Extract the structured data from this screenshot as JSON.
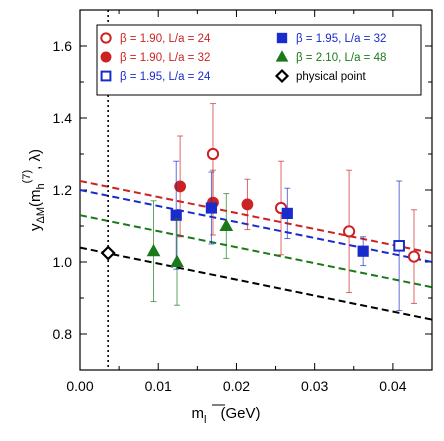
{
  "chart_data": {
    "type": "scatter",
    "title": "",
    "xlabel": "m_l (GeV)",
    "ylabel": "y_ΔM(m_h^(7), λ)",
    "xlim": [
      0.0,
      0.045
    ],
    "ylim": [
      0.7,
      1.7
    ],
    "xticks": [
      "0.00",
      "0.01",
      "0.02",
      "0.03",
      "0.04"
    ],
    "yticks": [
      "0.8",
      "1.0",
      "1.2",
      "1.4",
      "1.6"
    ],
    "x_tick_values": [
      0.0,
      0.01,
      0.02,
      0.03,
      0.04
    ],
    "y_tick_values": [
      0.8,
      1.0,
      1.2,
      1.4,
      1.6
    ],
    "physical_point_x": 0.0036,
    "legend_position": "top",
    "series": [
      {
        "name": "β = 1.90, L/a = 24",
        "color": "#cc2222",
        "marker": "circle-open",
        "points": [
          {
            "x": 0.017,
            "y": 1.3,
            "err": 0.14
          },
          {
            "x": 0.0257,
            "y": 1.15,
            "err": 0.13
          },
          {
            "x": 0.0344,
            "y": 1.085,
            "err": 0.17
          },
          {
            "x": 0.0427,
            "y": 1.015,
            "err": 0.13
          }
        ]
      },
      {
        "name": "β = 1.90, L/a = 32",
        "color": "#cc2222",
        "marker": "circle-filled",
        "points": [
          {
            "x": 0.0128,
            "y": 1.21,
            "err": 0.14
          },
          {
            "x": 0.017,
            "y": 1.165,
            "err": 0.09
          },
          {
            "x": 0.0214,
            "y": 1.16,
            "err": 0.07
          }
        ]
      },
      {
        "name": "β = 1.95, L/a = 24",
        "color": "#1a2bcc",
        "marker": "square-open",
        "points": [
          {
            "x": 0.0408,
            "y": 1.045,
            "err": 0.18
          }
        ]
      },
      {
        "name": "β = 1.95, L/a = 32",
        "color": "#1a2bcc",
        "marker": "square-filled",
        "points": [
          {
            "x": 0.0123,
            "y": 1.13,
            "err": 0.15
          },
          {
            "x": 0.0168,
            "y": 1.15,
            "err": 0.1
          },
          {
            "x": 0.0265,
            "y": 1.135,
            "err": 0.07
          },
          {
            "x": 0.0362,
            "y": 1.03,
            "err": 0.04
          }
        ]
      },
      {
        "name": "β = 2.10, L/a = 48",
        "color": "#1a7a1a",
        "marker": "triangle-filled",
        "points": [
          {
            "x": 0.0094,
            "y": 1.03,
            "err": 0.14
          },
          {
            "x": 0.0124,
            "y": 1.0,
            "err": 0.12
          },
          {
            "x": 0.0187,
            "y": 1.1,
            "err": 0.09
          }
        ]
      },
      {
        "name": "physical point",
        "color": "#000000",
        "marker": "diamond-open",
        "points": [
          {
            "x": 0.0036,
            "y": 1.025,
            "err": 0.0
          }
        ]
      }
    ],
    "fit_lines": [
      {
        "color": "#cc2222",
        "y_at_0": 1.225,
        "y_at_045": 1.025
      },
      {
        "color": "#1a2bcc",
        "y_at_0": 1.2,
        "y_at_045": 1.0
      },
      {
        "color": "#1a7a1a",
        "y_at_0": 1.13,
        "y_at_045": 0.93
      },
      {
        "color": "#000000",
        "y_at_0": 1.04,
        "y_at_045": 0.84
      }
    ]
  }
}
